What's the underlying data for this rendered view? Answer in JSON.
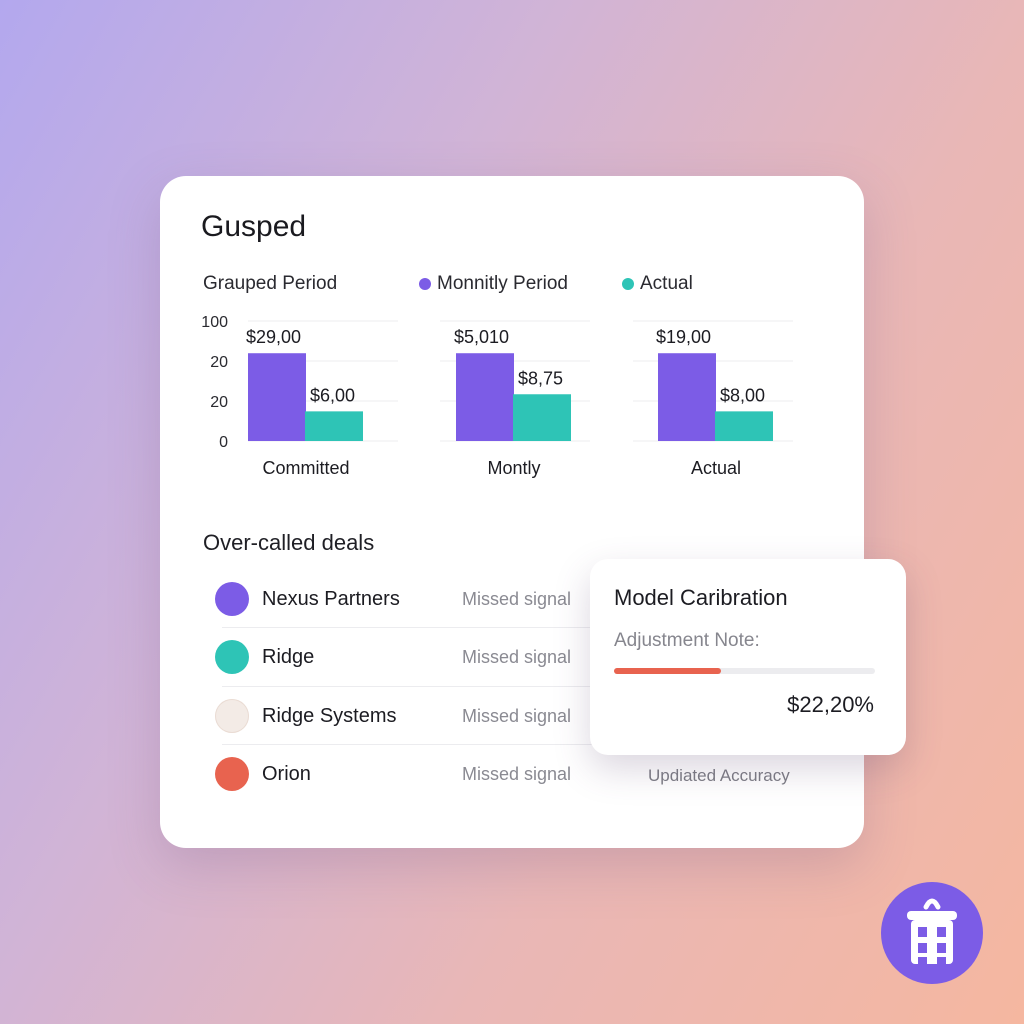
{
  "title": "Gusped",
  "legend": [
    {
      "label": "Grauped Period",
      "color": ""
    },
    {
      "label": "Monnitly Period",
      "color": "#7c5ce6"
    },
    {
      "label": "Actual",
      "color": "#2ec4b6"
    }
  ],
  "colors": {
    "purple": "#7c5ce6",
    "teal": "#2ec4b6",
    "coral": "#e8634f"
  },
  "chart_data": {
    "type": "bar",
    "y_ticks": [
      "100",
      "20",
      "20",
      "0"
    ],
    "groups": [
      {
        "category": "Committed",
        "bars": [
          {
            "value": "$29,00",
            "level": 0.77
          },
          {
            "value": "$6,00",
            "level": 0.26
          }
        ]
      },
      {
        "category": "Montly",
        "bars": [
          {
            "value": "$5,010",
            "level": 0.77
          },
          {
            "value": "$8,75",
            "level": 0.41
          }
        ]
      },
      {
        "category": "Actual",
        "bars": [
          {
            "value": "$19,00",
            "level": 0.77
          },
          {
            "value": "$8,00",
            "level": 0.26
          }
        ]
      }
    ],
    "grid": true
  },
  "deals": {
    "title": "Over-called deals",
    "items": [
      {
        "name": "Nexus Partners",
        "status": "Missed signal",
        "color": "#7c5ce6"
      },
      {
        "name": "Ridge",
        "status": "Missed signal",
        "color": "#2ec4b6"
      },
      {
        "name": "Ridge Systems",
        "status": "Missed signal",
        "color": "#f3ebe6"
      },
      {
        "name": "Orion",
        "status": "Missed signal",
        "color": "#e8634f"
      }
    ],
    "extra": "Updiated Accuracy"
  },
  "popup": {
    "title": "Model Caribration",
    "label": "Adjustment Note:",
    "progress": 0.41,
    "value": "$22,20%"
  },
  "logo_icon": "lantern-icon"
}
